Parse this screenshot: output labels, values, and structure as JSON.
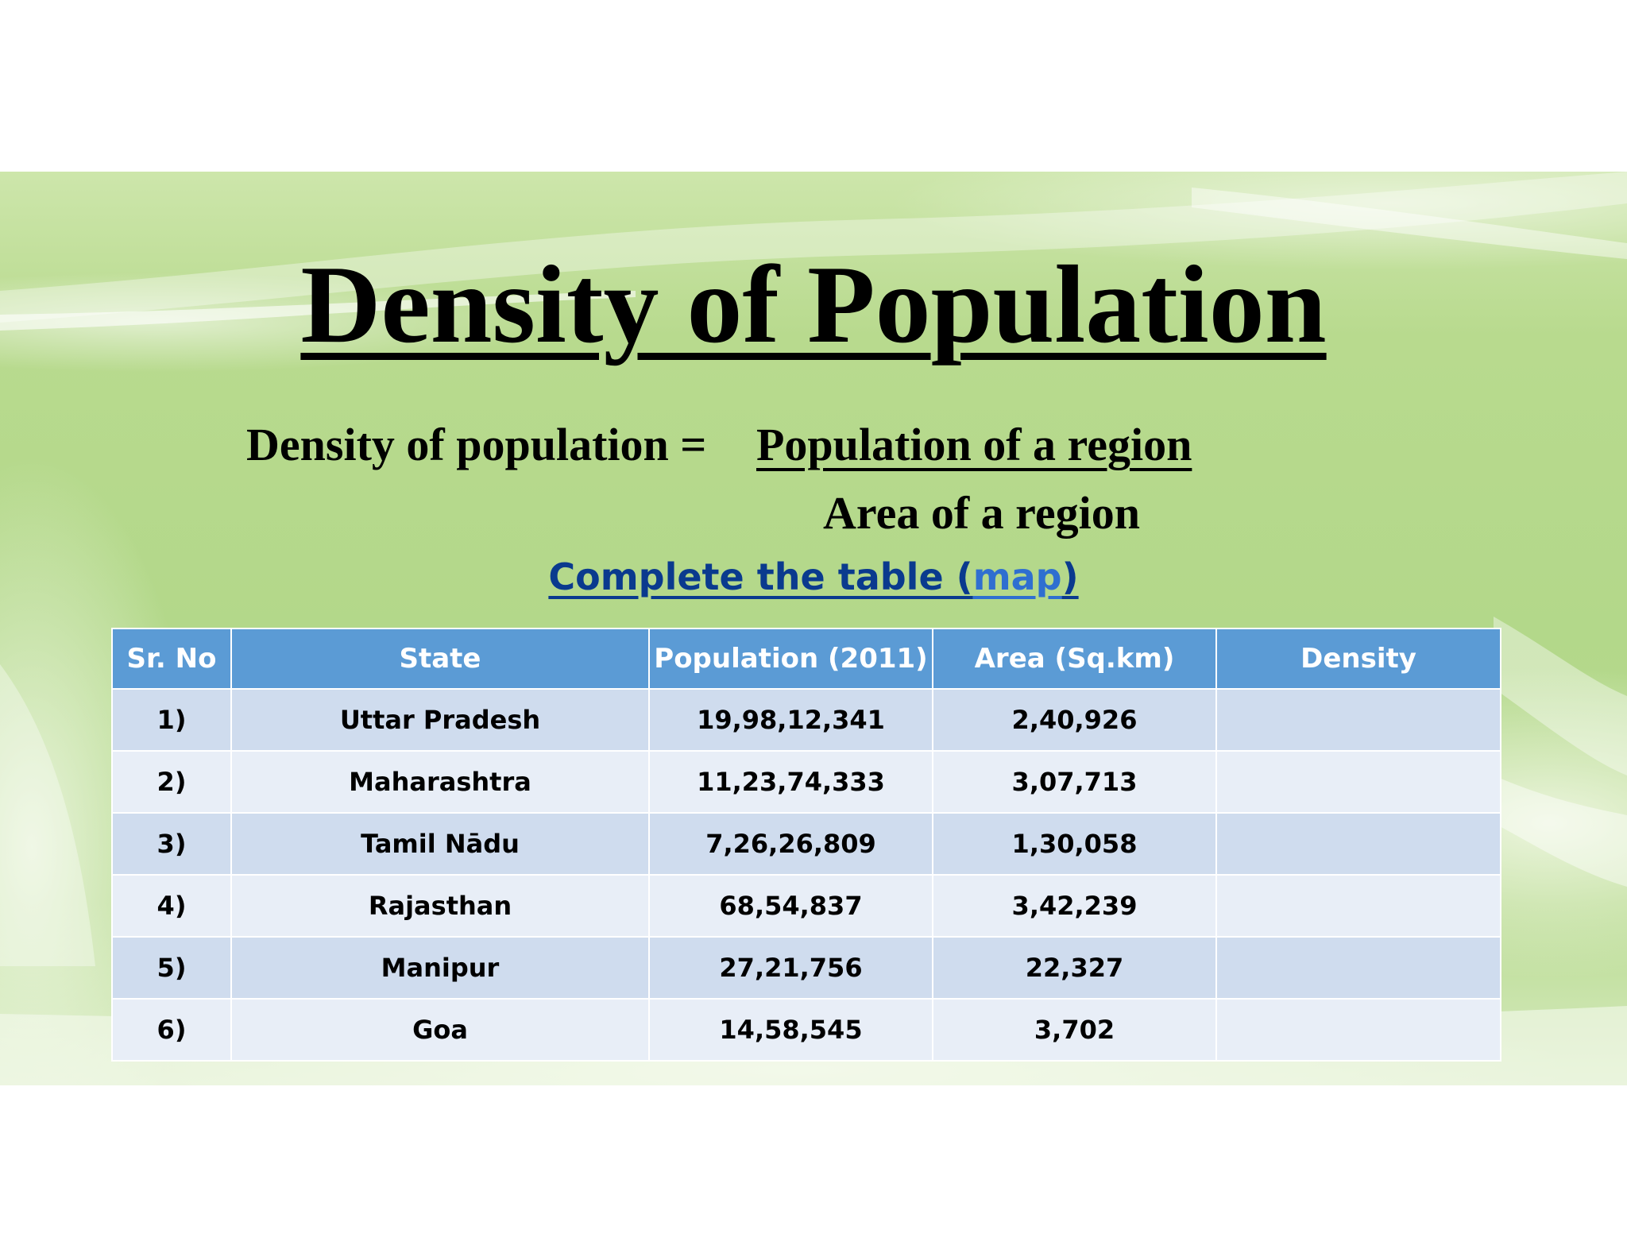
{
  "slide": {
    "title": "Density of Population",
    "formula": {
      "lhs": "Density of population =",
      "numerator": "Population of a region",
      "denominator": "Area of a region"
    },
    "task": {
      "text": "Complete the table (",
      "link": "map",
      "close": ")"
    }
  },
  "table": {
    "headers": [
      "Sr. No",
      "State",
      "Population (2011)",
      "Area (Sq.km)",
      "Density"
    ],
    "rows": [
      {
        "sr": "1)",
        "state": "Uttar Pradesh",
        "population": "19,98,12,341",
        "area": "2,40,926",
        "density": ""
      },
      {
        "sr": "2)",
        "state": "Maharashtra",
        "population": "11,23,74,333",
        "area": "3,07,713",
        "density": ""
      },
      {
        "sr": "3)",
        "state": "Tamil Nādu",
        "population": "7,26,26,809",
        "area": "1,30,058",
        "density": ""
      },
      {
        "sr": "4)",
        "state": "Rajasthan",
        "population": "68,54,837",
        "area": "3,42,239",
        "density": ""
      },
      {
        "sr": "5)",
        "state": "Manipur",
        "population": "27,21,756",
        "area": "22,327",
        "density": ""
      },
      {
        "sr": "6)",
        "state": "Goa",
        "population": "14,58,545",
        "area": "3,702",
        "density": ""
      }
    ]
  },
  "colors": {
    "background_green": "#b3d88a",
    "header_blue": "#5b9bd5",
    "row_dark": "#cfdcee",
    "row_light": "#e8eef7",
    "task_text": "#0a3a8e",
    "link": "#2f6fd0"
  }
}
